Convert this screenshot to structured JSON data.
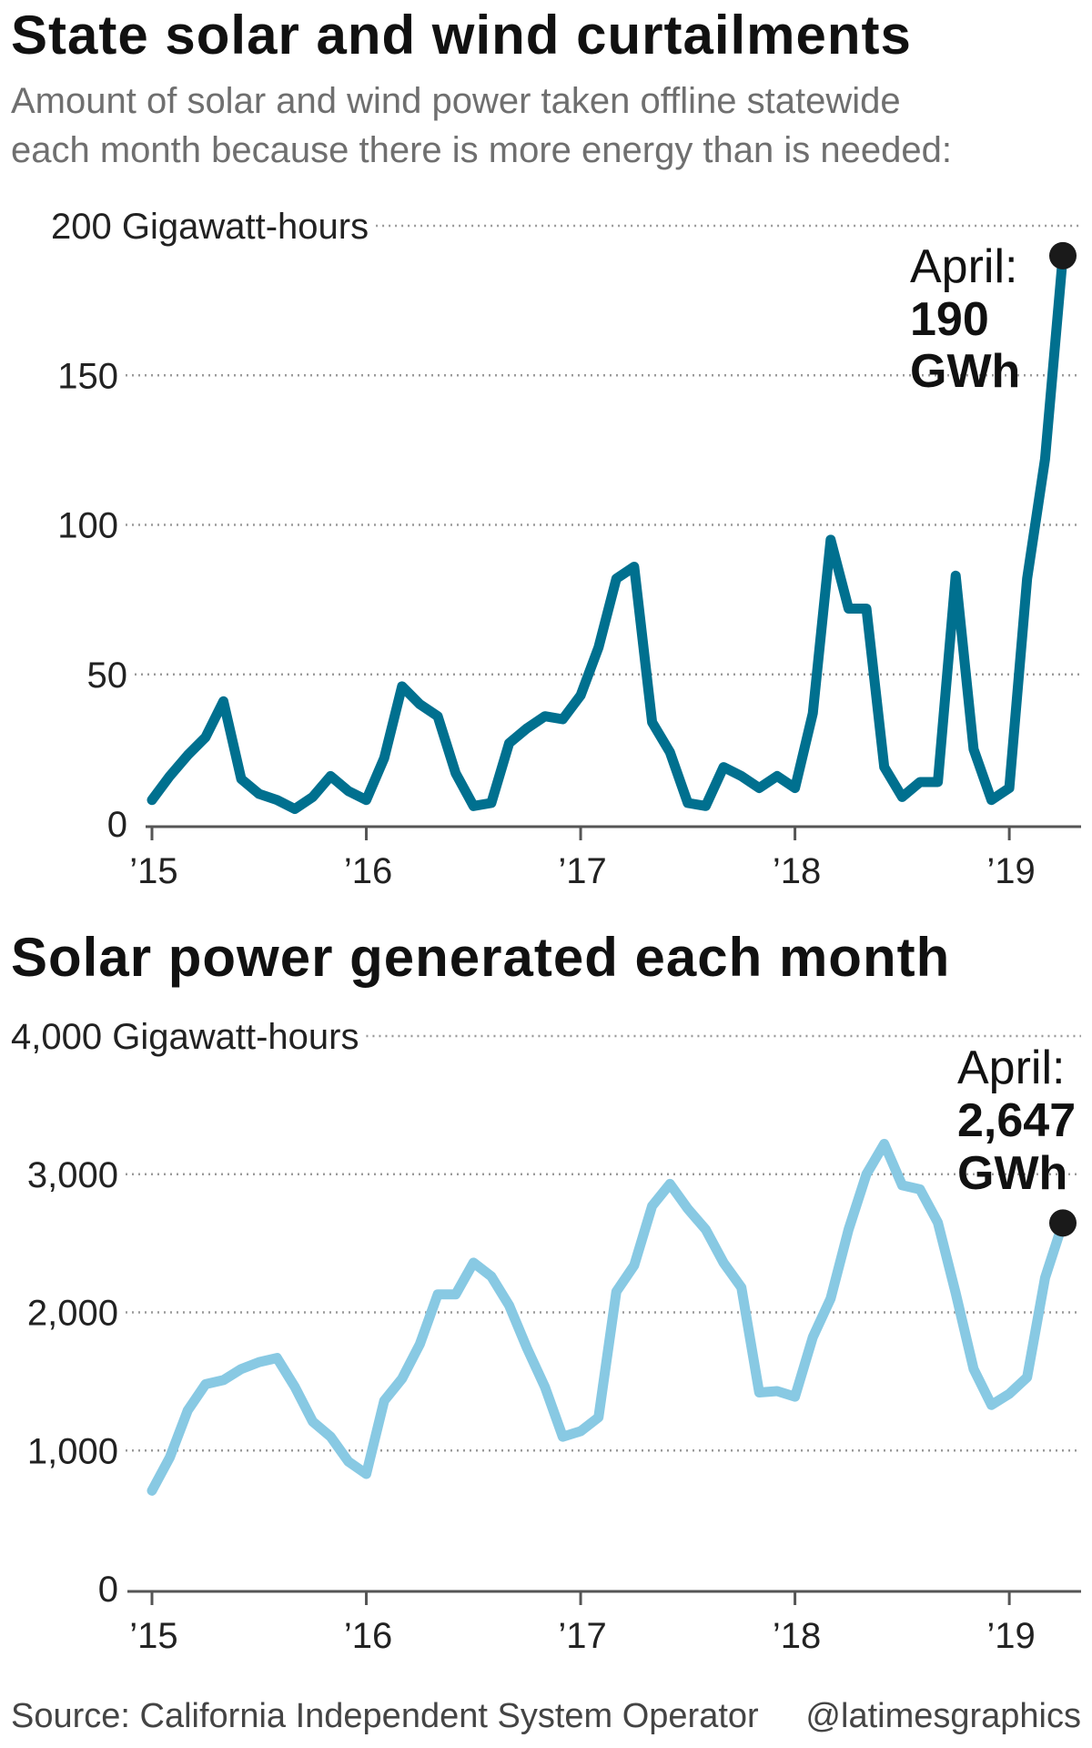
{
  "title": "State solar and wind curtailments",
  "subtitle_line1": "Amount of solar and wind power taken offline statewide",
  "subtitle_line2": "each month because there is more energy than is needed:",
  "title2": "Solar power generated each month",
  "source": "Source: California Independent System Operator",
  "credit": "@latimesgraphics",
  "colors": {
    "curtailment": "#00708f",
    "solar": "#88c9e3",
    "marker": "#1a1a1a"
  },
  "chart_data": [
    {
      "type": "line",
      "title": "State solar and wind curtailments",
      "subtitle": "Amount of solar and wind power taken offline statewide each month because there is more energy than is needed:",
      "y_unit_label": "200 Gigawatt-hours",
      "ylim": [
        0,
        200
      ],
      "yticks": [
        0,
        50,
        100,
        150,
        200
      ],
      "ytick_labels": [
        "0",
        "50",
        "100",
        "150",
        "200 Gigawatt-hours"
      ],
      "xtick_labels": [
        "’15",
        "’16",
        "’17",
        "’18",
        "’19"
      ],
      "x_start": "2015-01",
      "x_end": "2019-04",
      "grid": true,
      "annotation": {
        "line1": "April:",
        "line2": "190",
        "line3": "GWh"
      },
      "series": [
        {
          "values": [
            8,
            16,
            23,
            29,
            41,
            15,
            10,
            8,
            5,
            9,
            16,
            11,
            8,
            22,
            46,
            40,
            36,
            17,
            6,
            7,
            27,
            32,
            36,
            35,
            43,
            59,
            82,
            86,
            34,
            24,
            7,
            6,
            19,
            16,
            12,
            16,
            12,
            37,
            95,
            72,
            72,
            19,
            9,
            14,
            14,
            83,
            25,
            8,
            12,
            82,
            122,
            190
          ]
        }
      ]
    },
    {
      "type": "line",
      "title": "Solar power generated each month",
      "y_unit_label": "4,000 Gigawatt-hours",
      "ylim": [
        0,
        4000
      ],
      "yticks": [
        0,
        1000,
        2000,
        3000,
        4000
      ],
      "ytick_labels": [
        "0",
        "1,000",
        "2,000",
        "3,000",
        "4,000 Gigawatt-hours"
      ],
      "xtick_labels": [
        "’15",
        "’16",
        "’17",
        "’18",
        "’19"
      ],
      "x_start": "2015-01",
      "x_end": "2019-04",
      "grid": true,
      "annotation": {
        "line1": "April:",
        "line2": "2,647",
        "line3": "GWh"
      },
      "series": [
        {
          "values": [
            710,
            950,
            1290,
            1480,
            1510,
            1590,
            1640,
            1670,
            1460,
            1210,
            1100,
            920,
            830,
            1360,
            1520,
            1770,
            2130,
            2130,
            2360,
            2260,
            2050,
            1740,
            1460,
            1100,
            1140,
            1240,
            2150,
            2340,
            2770,
            2930,
            2750,
            2600,
            2360,
            2180,
            1420,
            1430,
            1390,
            1820,
            2100,
            2600,
            3000,
            3220,
            2920,
            2890,
            2650,
            2140,
            1590,
            1330,
            1410,
            1530,
            2250,
            2647
          ]
        }
      ]
    }
  ]
}
